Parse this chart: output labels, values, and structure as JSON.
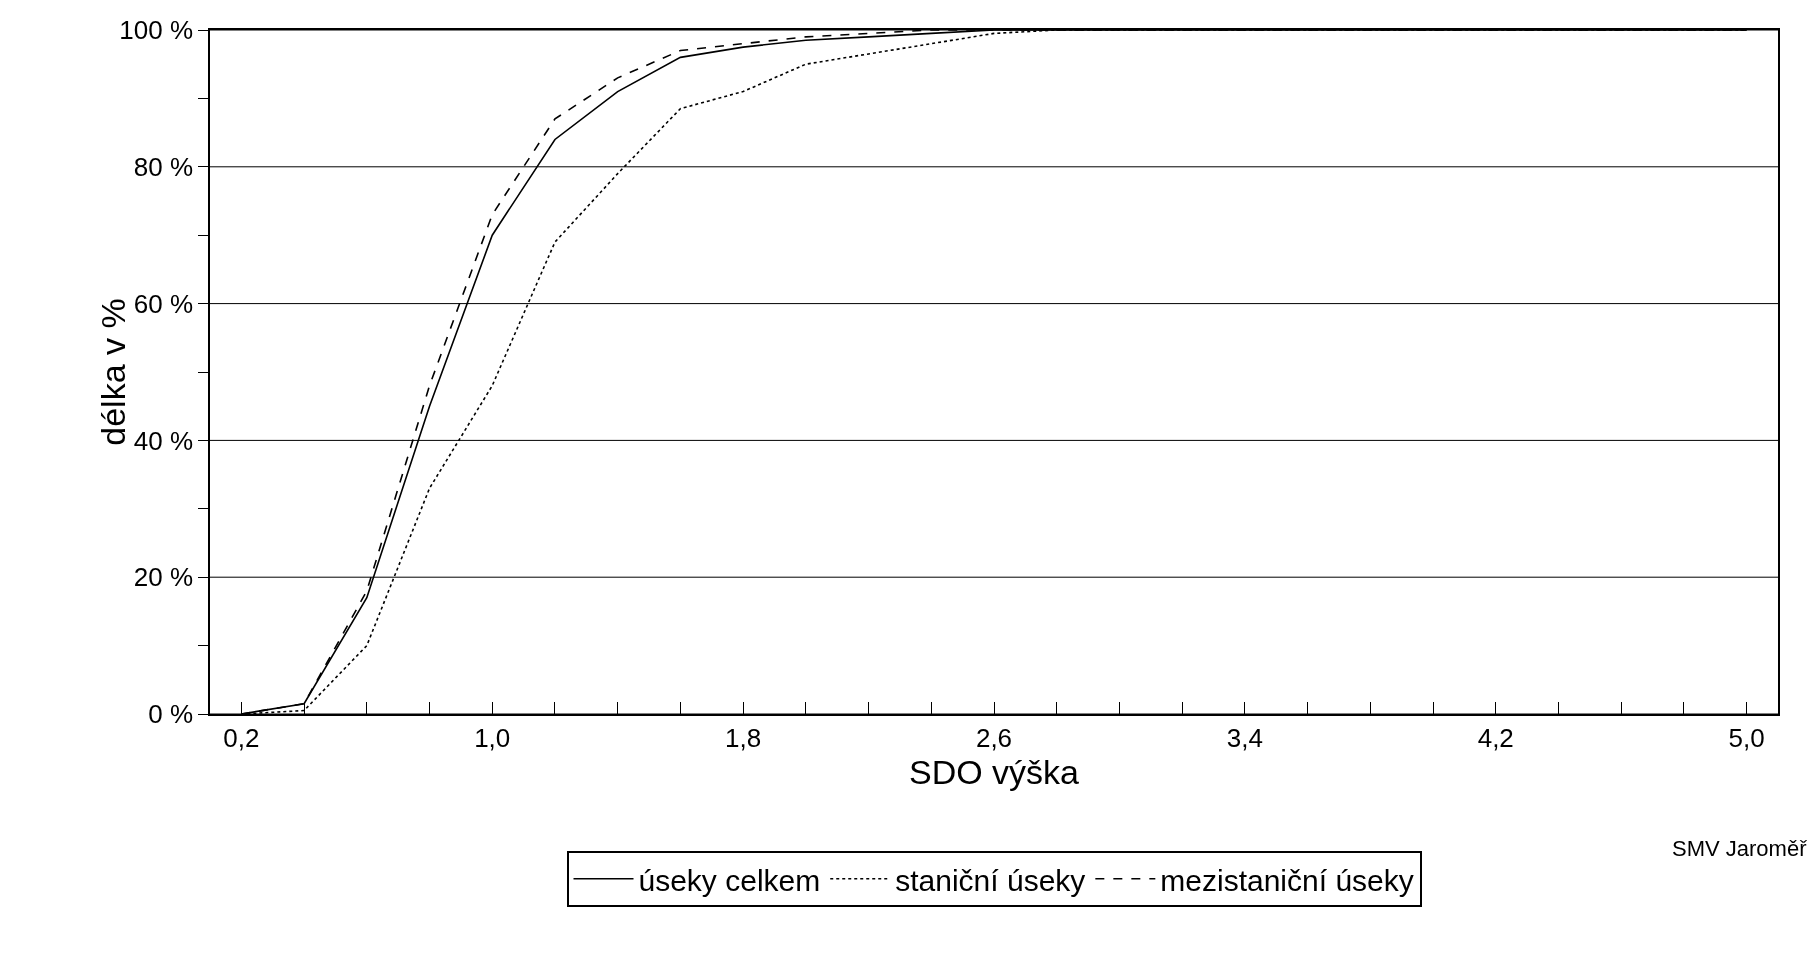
{
  "chart_data": {
    "type": "line",
    "xlabel": "SDO výška",
    "ylabel": "délka v %",
    "annotations": [
      "SMV Jaroměř"
    ],
    "x": [
      0.2,
      0.4,
      0.6,
      0.8,
      1.0,
      1.2,
      1.4,
      1.6,
      1.8,
      2.0,
      2.2,
      2.4,
      2.6,
      2.8,
      3.0,
      3.4,
      4.2,
      5.0
    ],
    "series": [
      {
        "name": "úseky celkem",
        "color": "#000000",
        "line_style": "solid",
        "values": [
          0,
          1.5,
          17,
          45,
          70,
          84,
          91,
          96,
          97.5,
          98.5,
          99,
          99.5,
          100,
          100,
          100,
          100,
          100,
          100
        ]
      },
      {
        "name": "staniční úseky",
        "color": "#000000",
        "line_style": "dotted",
        "values": [
          0,
          0.5,
          10,
          33,
          48,
          69,
          79,
          88.5,
          91,
          95,
          96.5,
          98,
          99.5,
          100,
          100,
          100,
          100,
          100
        ]
      },
      {
        "name": "mezistaniční úseky",
        "color": "#000000",
        "line_style": "dashed",
        "values": [
          0,
          1.5,
          18,
          48,
          73,
          87,
          93,
          97,
          98,
          99,
          99.5,
          100,
          100,
          100,
          100,
          100,
          100,
          100
        ]
      }
    ],
    "xlim": [
      0.1,
      5.1
    ],
    "xticks": [
      {
        "value": 0.2,
        "label": "0,2"
      },
      {
        "value": 0.4,
        "label": null
      },
      {
        "value": 0.6,
        "label": null
      },
      {
        "value": 0.8,
        "label": null
      },
      {
        "value": 1.0,
        "label": "1,0"
      },
      {
        "value": 1.2,
        "label": null
      },
      {
        "value": 1.4,
        "label": null
      },
      {
        "value": 1.6,
        "label": null
      },
      {
        "value": 1.8,
        "label": "1,8"
      },
      {
        "value": 2.0,
        "label": null
      },
      {
        "value": 2.2,
        "label": null
      },
      {
        "value": 2.4,
        "label": null
      },
      {
        "value": 2.6,
        "label": "2,6"
      },
      {
        "value": 2.8,
        "label": null
      },
      {
        "value": 3.0,
        "label": null
      },
      {
        "value": 3.2,
        "label": null
      },
      {
        "value": 3.4,
        "label": "3,4"
      },
      {
        "value": 3.6,
        "label": null
      },
      {
        "value": 3.8,
        "label": null
      },
      {
        "value": 4.0,
        "label": null
      },
      {
        "value": 4.2,
        "label": "4,2"
      },
      {
        "value": 4.4,
        "label": null
      },
      {
        "value": 4.6,
        "label": null
      },
      {
        "value": 4.8,
        "label": null
      },
      {
        "value": 5.0,
        "label": "5,0"
      }
    ],
    "ylim": [
      0,
      100
    ],
    "yticks": [
      {
        "value": 0,
        "label": "0 %"
      },
      {
        "value": 10,
        "label": null
      },
      {
        "value": 20,
        "label": "20 %"
      },
      {
        "value": 30,
        "label": null
      },
      {
        "value": 40,
        "label": "40 %"
      },
      {
        "value": 50,
        "label": null
      },
      {
        "value": 60,
        "label": "60 %"
      },
      {
        "value": 70,
        "label": null
      },
      {
        "value": 80,
        "label": "80 %"
      },
      {
        "value": 90,
        "label": null
      },
      {
        "value": 100,
        "label": "100 %"
      }
    ],
    "grid": "y",
    "legend": "bottom",
    "marker": "none"
  }
}
